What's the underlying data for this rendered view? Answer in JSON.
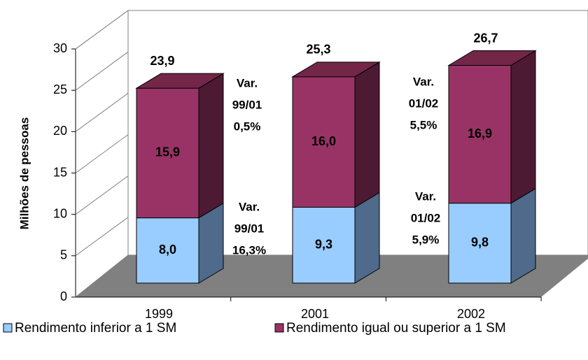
{
  "chart_data": {
    "type": "bar3d_stacked",
    "y_label": "Milhões de pessoas",
    "categories": [
      "1999",
      "2001",
      "2002"
    ],
    "series": [
      {
        "name": "Rendimento inferior a 1 SM",
        "color": "#99ccff",
        "side_color": "#4f6a8a",
        "values": [
          8.0,
          9.3,
          9.8
        ],
        "value_labels": [
          "8,0",
          "9,3",
          "9,8"
        ]
      },
      {
        "name": "Rendimento igual ou superior a 1 SM",
        "color": "#993366",
        "side_color": "#4d1a33",
        "values": [
          15.9,
          16.0,
          16.9
        ],
        "value_labels": [
          "15,9",
          "16,0",
          "16,9"
        ]
      }
    ],
    "totals": [
      23.9,
      25.3,
      26.7
    ],
    "total_labels": [
      "23,9",
      "25,3",
      "26,7"
    ],
    "annotations": [
      {
        "lines": [
          "Var.",
          "99/01",
          "0,5%"
        ]
      },
      {
        "lines": [
          "Var.",
          "99/01",
          "16,3%"
        ]
      },
      {
        "lines": [
          "Var.",
          "01/02",
          "5,5%"
        ]
      },
      {
        "lines": [
          "Var.",
          "01/02",
          "5,9%"
        ]
      }
    ],
    "ylim": [
      0,
      30
    ],
    "yticks": [
      0,
      5,
      10,
      15,
      20,
      25,
      30
    ]
  }
}
